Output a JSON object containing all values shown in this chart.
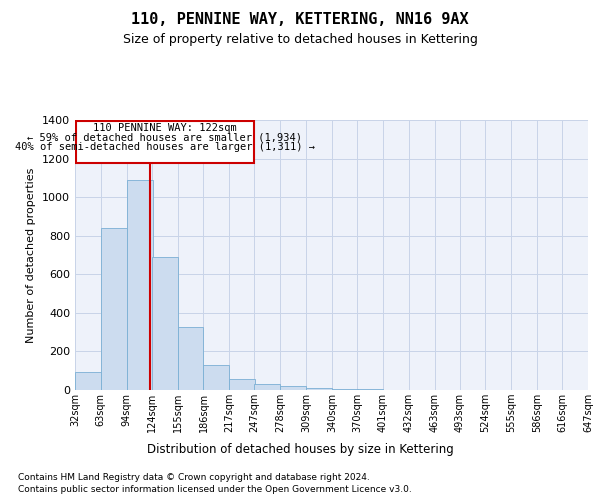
{
  "title": "110, PENNINE WAY, KETTERING, NN16 9AX",
  "subtitle": "Size of property relative to detached houses in Kettering",
  "xlabel": "Distribution of detached houses by size in Kettering",
  "ylabel": "Number of detached properties",
  "footer_line1": "Contains HM Land Registry data © Crown copyright and database right 2024.",
  "footer_line2": "Contains public sector information licensed under the Open Government Licence v3.0.",
  "bar_color": "#ccdcef",
  "bar_edge_color": "#7aafd4",
  "grid_color": "#c8d4e8",
  "annotation_line_color": "#cc0000",
  "property_size": 122,
  "annotation_text_line1": "110 PENNINE WAY: 122sqm",
  "annotation_text_line2": "← 59% of detached houses are smaller (1,934)",
  "annotation_text_line3": "40% of semi-detached houses are larger (1,311) →",
  "bin_edges": [
    32,
    63,
    94,
    124,
    155,
    186,
    217,
    247,
    278,
    309,
    340,
    370,
    401,
    432,
    463,
    493,
    524,
    555,
    586,
    616,
    647
  ],
  "bar_heights": [
    95,
    840,
    1090,
    690,
    325,
    130,
    55,
    30,
    20,
    10,
    7,
    3,
    0,
    0,
    0,
    0,
    0,
    0,
    0,
    0
  ],
  "ylim": [
    0,
    1400
  ],
  "yticks": [
    0,
    200,
    400,
    600,
    800,
    1000,
    1200,
    1400
  ],
  "background_color": "#eef2fa"
}
